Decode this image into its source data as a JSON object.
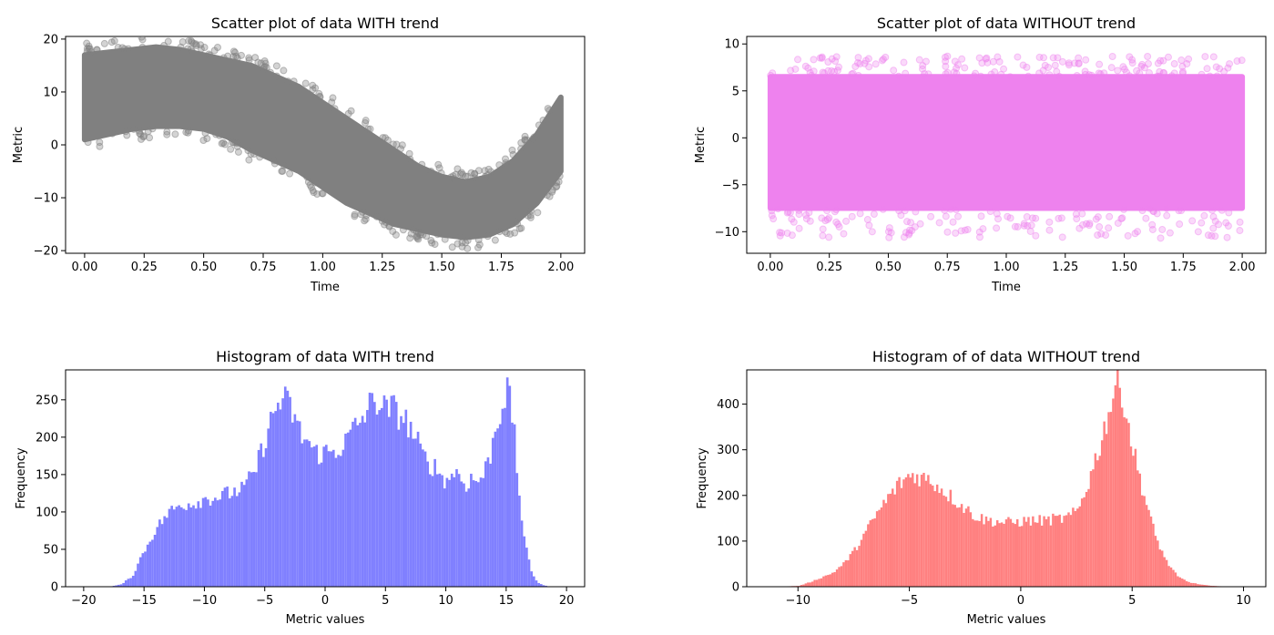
{
  "chart_data": [
    {
      "type": "scatter",
      "title": "Scatter plot of data WITH trend",
      "xlabel": "Time",
      "ylabel": "Metric",
      "xlim": [
        -0.08,
        2.1
      ],
      "ylim": [
        -20.5,
        20.5
      ],
      "xticks": [
        0.0,
        0.25,
        0.5,
        0.75,
        1.0,
        1.25,
        1.5,
        1.75,
        2.0
      ],
      "xtick_labels": [
        "0.00",
        "0.25",
        "0.50",
        "0.75",
        "1.00",
        "1.25",
        "1.50",
        "1.75",
        "2.00"
      ],
      "yticks": [
        -20,
        -10,
        0,
        10,
        20
      ],
      "ytick_labels": [
        "−20",
        "−10",
        "0",
        "10",
        "20"
      ],
      "color": "#808080",
      "x": [
        0.0,
        0.1,
        0.2,
        0.3,
        0.4,
        0.5,
        0.6,
        0.7,
        0.8,
        0.9,
        1.0,
        1.1,
        1.2,
        1.3,
        1.4,
        1.5,
        1.6,
        1.7,
        1.8,
        1.9,
        2.0
      ],
      "y_upper": [
        17,
        17.5,
        18,
        18.5,
        18,
        17,
        16,
        15,
        13,
        11,
        8,
        5,
        2,
        -1,
        -4,
        -6,
        -7,
        -6,
        -3,
        2,
        9
      ],
      "y_lower": [
        1,
        2,
        3,
        3.5,
        3.5,
        3,
        1.5,
        -1,
        -3,
        -5,
        -8,
        -11,
        -13,
        -15,
        -16,
        -17,
        -17.5,
        -17,
        -15,
        -11,
        -5
      ]
    },
    {
      "type": "scatter",
      "title": "Scatter plot of data WITHOUT trend",
      "xlabel": "Time",
      "ylabel": "Metric",
      "xlim": [
        -0.1,
        2.1
      ],
      "ylim": [
        -12.3,
        10.8
      ],
      "xticks": [
        0.0,
        0.25,
        0.5,
        0.75,
        1.0,
        1.25,
        1.5,
        1.75,
        2.0
      ],
      "xtick_labels": [
        "0.00",
        "0.25",
        "0.50",
        "0.75",
        "1.00",
        "1.25",
        "1.50",
        "1.75",
        "2.00"
      ],
      "yticks": [
        -10,
        -5,
        0,
        5,
        10
      ],
      "ytick_labels": [
        "−10",
        "−5",
        "0",
        "5",
        "10"
      ],
      "color": "#ee82ee",
      "band": [
        -7.5,
        6.5
      ]
    },
    {
      "type": "bar",
      "title": "Histogram of data WITH trend",
      "xlabel": "Metric values",
      "ylabel": "Frequency",
      "xlim": [
        -21.5,
        21.5
      ],
      "ylim": [
        0,
        290
      ],
      "xticks": [
        -20,
        -15,
        -10,
        -5,
        0,
        5,
        10,
        15,
        20
      ],
      "xtick_labels": [
        "−20",
        "−15",
        "−10",
        "−5",
        "0",
        "5",
        "10",
        "15",
        "20"
      ],
      "yticks": [
        0,
        50,
        100,
        150,
        200,
        250
      ],
      "ytick_labels": [
        "0",
        "50",
        "100",
        "150",
        "200",
        "250"
      ],
      "color": "#8080ff",
      "bin_width": 0.2,
      "x": [
        -18,
        -17,
        -16,
        -15.5,
        -15,
        -14,
        -13,
        -12,
        -11,
        -10,
        -9,
        -8,
        -7,
        -6,
        -5.5,
        -5,
        -4.5,
        -4,
        -3.5,
        -3,
        -2.5,
        -2,
        -1.5,
        -1,
        -0.5,
        0,
        0.5,
        1,
        1.5,
        2,
        2.5,
        3,
        3.5,
        4,
        4.5,
        5,
        5.5,
        6,
        6.5,
        7,
        7.5,
        8,
        8.5,
        9,
        9.5,
        10,
        10.5,
        11,
        11.5,
        12,
        12.5,
        13,
        13.5,
        14,
        14.5,
        15,
        15.5,
        16,
        16.5,
        17,
        17.5,
        18,
        18.5,
        19
      ],
      "y": [
        0,
        3,
        15,
        35,
        50,
        80,
        100,
        110,
        112,
        118,
        120,
        125,
        130,
        150,
        175,
        200,
        225,
        245,
        250,
        240,
        220,
        200,
        195,
        180,
        178,
        180,
        180,
        185,
        190,
        205,
        215,
        225,
        240,
        250,
        245,
        235,
        240,
        230,
        225,
        210,
        195,
        175,
        165,
        160,
        150,
        140,
        155,
        150,
        135,
        145,
        140,
        150,
        170,
        210,
        240,
        265,
        220,
        120,
        55,
        20,
        6,
        2,
        0,
        0
      ]
    },
    {
      "type": "bar",
      "title": "Histogram of of data WITHOUT trend",
      "xlabel": "Metric values",
      "ylabel": "Frequency",
      "xlim": [
        -12.3,
        11.0
      ],
      "ylim": [
        0,
        475
      ],
      "xticks": [
        -10,
        -5,
        0,
        5,
        10
      ],
      "xtick_labels": [
        "−10",
        "−5",
        "0",
        "5",
        "10"
      ],
      "yticks": [
        0,
        100,
        200,
        300,
        400
      ],
      "ytick_labels": [
        "0",
        "100",
        "200",
        "300",
        "400"
      ],
      "color": "#ff8080",
      "bin_width": 0.1,
      "x": [
        -11,
        -10,
        -9.5,
        -9,
        -8.5,
        -8,
        -7.5,
        -7,
        -6.5,
        -6,
        -5.5,
        -5,
        -4.5,
        -4,
        -3.5,
        -3,
        -2.5,
        -2,
        -1.5,
        -1,
        -0.5,
        0,
        0.5,
        1,
        1.5,
        2,
        2.5,
        3,
        3.5,
        4,
        4.2,
        4.5,
        5,
        5.5,
        6,
        6.5,
        7,
        7.5,
        8,
        8.5,
        9,
        10
      ],
      "y": [
        0,
        2,
        10,
        20,
        30,
        50,
        80,
        120,
        160,
        195,
        225,
        245,
        240,
        230,
        210,
        190,
        170,
        152,
        145,
        142,
        140,
        143,
        145,
        145,
        148,
        150,
        165,
        230,
        310,
        400,
        440,
        430,
        300,
        200,
        110,
        55,
        22,
        10,
        5,
        2,
        1,
        0
      ]
    }
  ]
}
